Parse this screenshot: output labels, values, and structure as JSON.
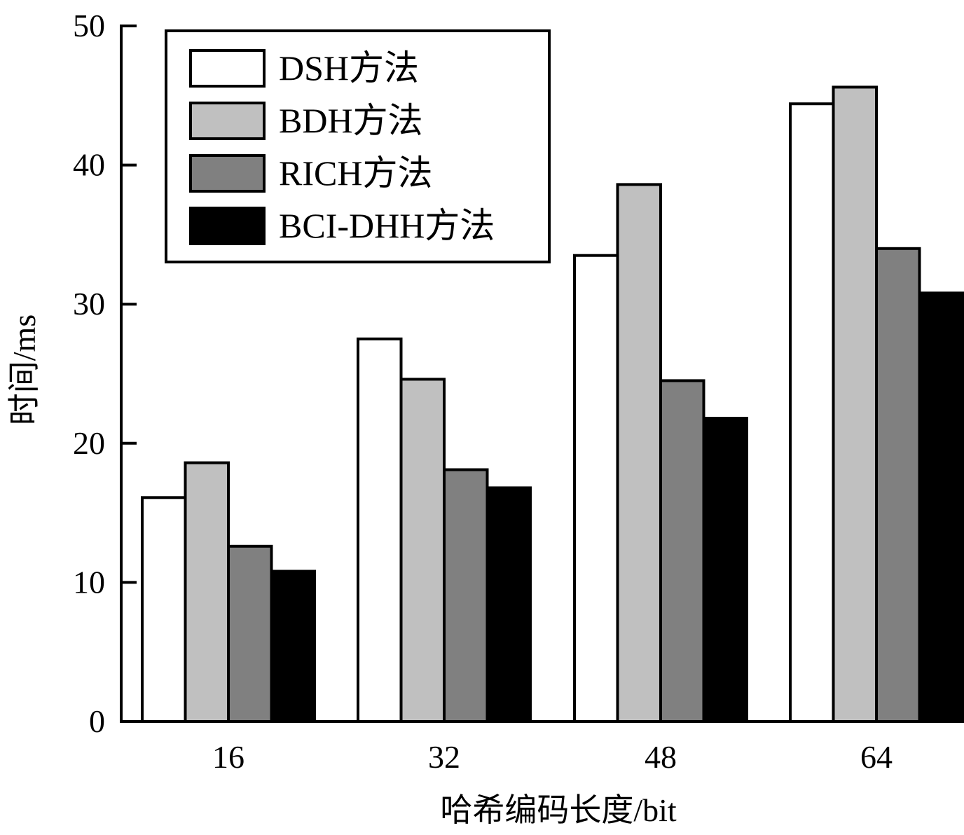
{
  "chart_data": {
    "type": "bar",
    "title": "",
    "xlabel": "哈希编码长度/bit",
    "ylabel": "时间/ms",
    "categories": [
      "16",
      "32",
      "48",
      "64"
    ],
    "ylim": [
      0,
      50
    ],
    "yticks": [
      "0",
      "10",
      "20",
      "30",
      "40",
      "50"
    ],
    "grid": false,
    "legend_position": "top-left",
    "series": [
      {
        "name": "DSH方法",
        "values": [
          16.1,
          27.5,
          33.5,
          44.4
        ],
        "color": "#ffffff"
      },
      {
        "name": "BDH方法",
        "values": [
          18.6,
          24.6,
          38.6,
          45.6
        ],
        "color": "#c0c0c0"
      },
      {
        "name": "RICH方法",
        "values": [
          12.6,
          18.1,
          24.5,
          34.0
        ],
        "color": "#808080"
      },
      {
        "name": "BCI-DHH方法",
        "values": [
          10.8,
          16.8,
          21.8,
          30.8
        ],
        "color": "#000000"
      }
    ]
  }
}
